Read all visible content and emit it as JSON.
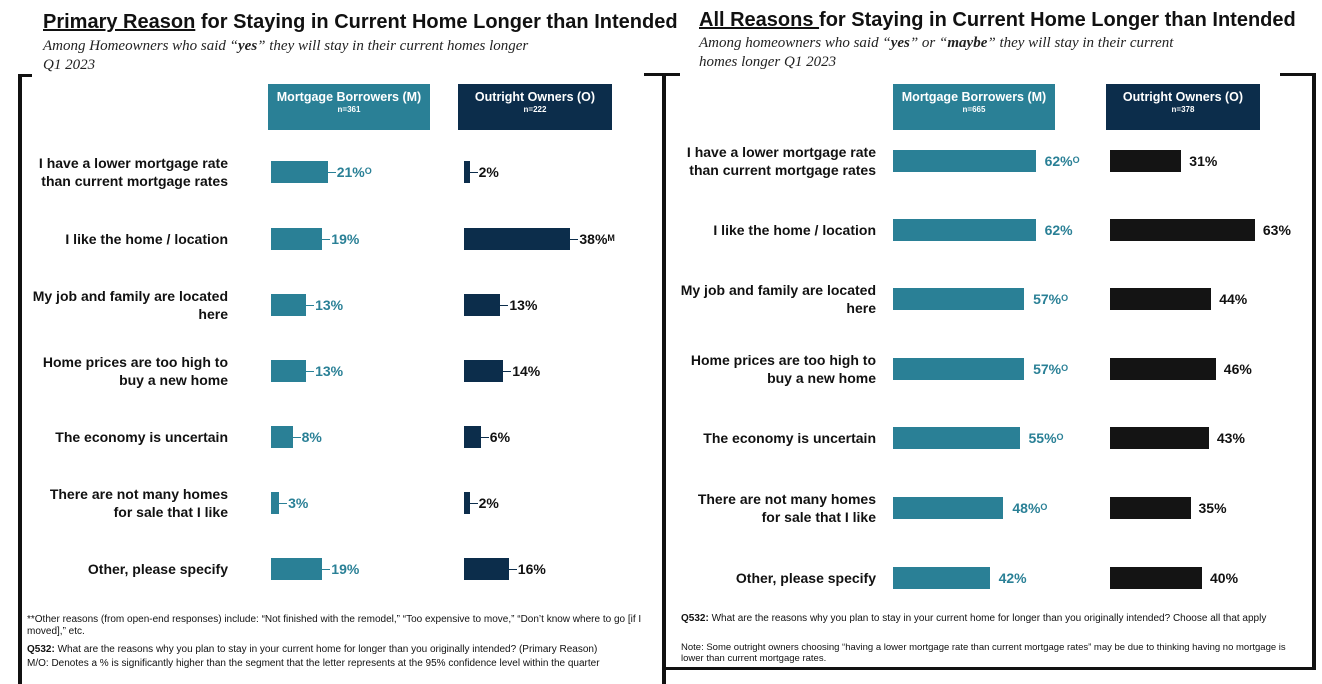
{
  "left": {
    "title_underlined": "Primary Reason",
    "title_rest": " for Staying in Current Home Longer than Intended",
    "subtitle_pre": "Among Homeowners who said “",
    "subtitle_yes": "yes",
    "subtitle_post": "” they will stay  in their current homes longer",
    "subtitle_line2": "Q1 2023",
    "header_m": "Mortgage Borrowers (M)",
    "header_m_n": "n=361",
    "header_o": "Outright Owners (O)",
    "header_o_n": "n=222",
    "note1": "**Other reasons (from open-end responses) include: “Not finished with the remodel,”  “Too expensive to move,” “Don’t know where to go [if I moved],”  etc.",
    "q_label": "Q532:",
    "q_text": " What are the reasons  why you plan to stay in your current home for longer than you originally intended? (Primary Reason)",
    "note2": "M/O: Denotes a % is significantly higher than the segment that the letter represents at the 95% confidence level within the quarter"
  },
  "right": {
    "title_underlined": "All Reasons ",
    "title_rest": "for Staying in Current Home Longer than Intended",
    "subtitle_pre": "Among homeowners who said “",
    "subtitle_yes": "yes",
    "subtitle_mid": "”  or “",
    "subtitle_maybe": "maybe",
    "subtitle_post": "”  they will stay in their current",
    "subtitle_line2": "homes longer Q1 2023",
    "header_m": "Mortgage Borrowers (M)",
    "header_m_n": "n=665",
    "header_o": "Outright Owners (O)",
    "header_o_n": "n=378",
    "q_label": "Q532:",
    "q_text": " What are the reasons why you plan to stay in your current home for longer than you originally intended?  Choose all that apply",
    "note": "Note: Some outright owners choosing “having a lower mortgage rate than current mortgage rates” may be due to thinking having no mortgage is lower than current mortgage rates."
  },
  "colors": {
    "mortgage": "#2a8096",
    "outright_left": "#0c2d4b",
    "outright_right": "#141414",
    "header_m_bg": "#2a8096",
    "header_o_bg": "#0c2d4b"
  },
  "chart_data": [
    {
      "type": "bar",
      "orientation": "horizontal",
      "title": "Primary Reason for Staying in Current Home Longer than Intended",
      "categories": [
        [
          "I have a lower mortgage rate",
          "than current mortgage rates"
        ],
        [
          "I like the home / location"
        ],
        [
          "My job and family are located",
          "here"
        ],
        [
          "Home prices are too high to",
          "buy a new home"
        ],
        [
          "The economy is uncertain"
        ],
        [
          "There are not many homes",
          "for sale that I like"
        ],
        [
          "Other, please specify"
        ]
      ],
      "series": [
        {
          "name": "Mortgage Borrowers (M)",
          "values": [
            21,
            19,
            13,
            13,
            8,
            3,
            19
          ],
          "sig": [
            "O",
            "",
            "",
            "",
            "",
            "",
            ""
          ]
        },
        {
          "name": "Outright Owners (O)",
          "values": [
            2,
            38,
            13,
            14,
            6,
            2,
            16
          ],
          "sig": [
            "",
            "M",
            "",
            "",
            "",
            "",
            ""
          ]
        }
      ],
      "unit": "%"
    },
    {
      "type": "bar",
      "orientation": "horizontal",
      "title": "All Reasons for Staying in Current Home Longer than Intended",
      "categories": [
        [
          "I have a lower mortgage rate",
          "than current mortgage rates"
        ],
        [
          "I like the home / location"
        ],
        [
          "My job and family are located",
          "here"
        ],
        [
          "Home prices are too high to",
          "buy a new home"
        ],
        [
          "The economy is uncertain"
        ],
        [
          "There are not many homes",
          "for sale that I like"
        ],
        [
          "Other, please specify"
        ]
      ],
      "series": [
        {
          "name": "Mortgage Borrowers (M)",
          "values": [
            62,
            62,
            57,
            57,
            55,
            48,
            42
          ],
          "sig": [
            "O",
            "",
            "O",
            "O",
            "O",
            "O",
            ""
          ]
        },
        {
          "name": "Outright Owners (O)",
          "values": [
            31,
            63,
            44,
            46,
            43,
            35,
            40
          ],
          "sig": [
            "",
            "",
            "",
            "",
            "",
            "",
            ""
          ]
        }
      ],
      "unit": "%"
    }
  ]
}
